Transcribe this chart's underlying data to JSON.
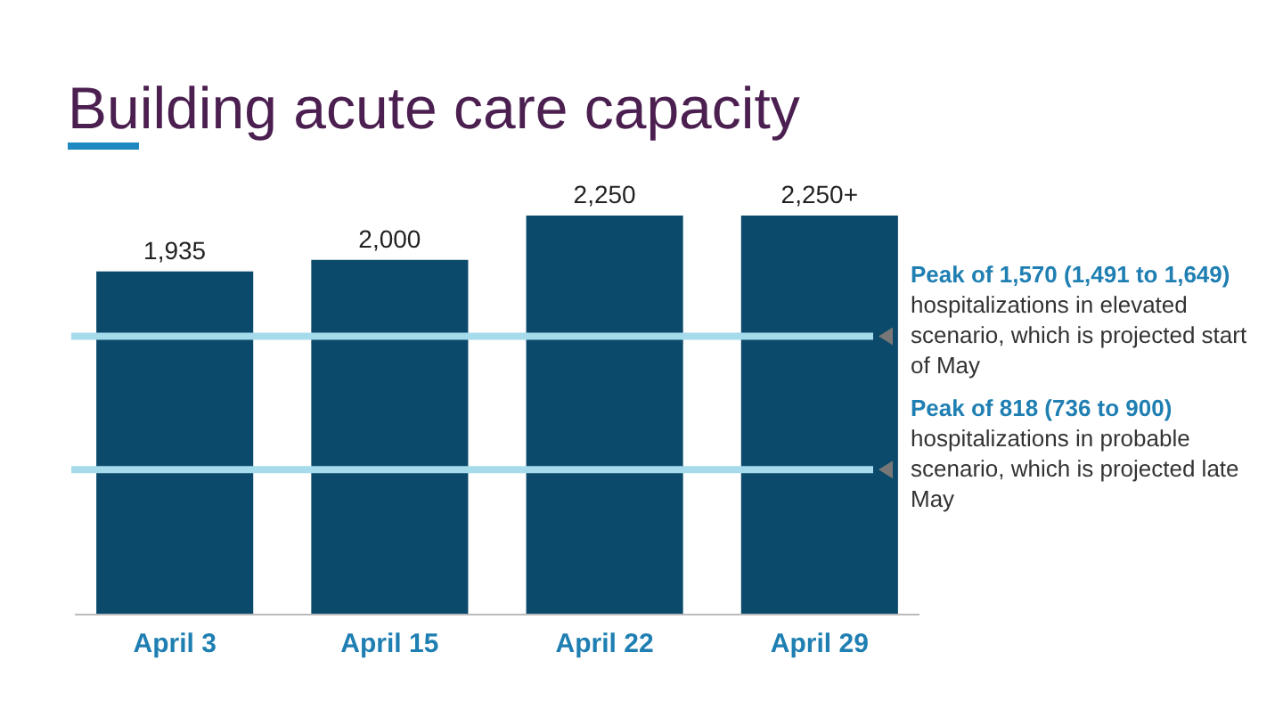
{
  "chart_data": {
    "type": "bar",
    "title": "Building acute care capacity",
    "categories": [
      "April 3",
      "April 15",
      "April 22",
      "April 29"
    ],
    "values": [
      1935,
      2000,
      2250,
      2250
    ],
    "value_labels": [
      "1,935",
      "2,000",
      "2,250",
      "2,250+"
    ],
    "color": "#0b4a6b",
    "ref_lines": [
      {
        "axis": "y",
        "value": 1570,
        "label": "Peak of 1,570 (1,491 to 1,649) hospitalizations in elevated scenario, which is projected start of May",
        "color": "#a6dbec"
      },
      {
        "axis": "y",
        "value": 818,
        "label": "Peak of 818 (736 to 900) hospitalizations in probable scenario, which is projected late May",
        "color": "#a6dbec"
      }
    ]
  }
}
